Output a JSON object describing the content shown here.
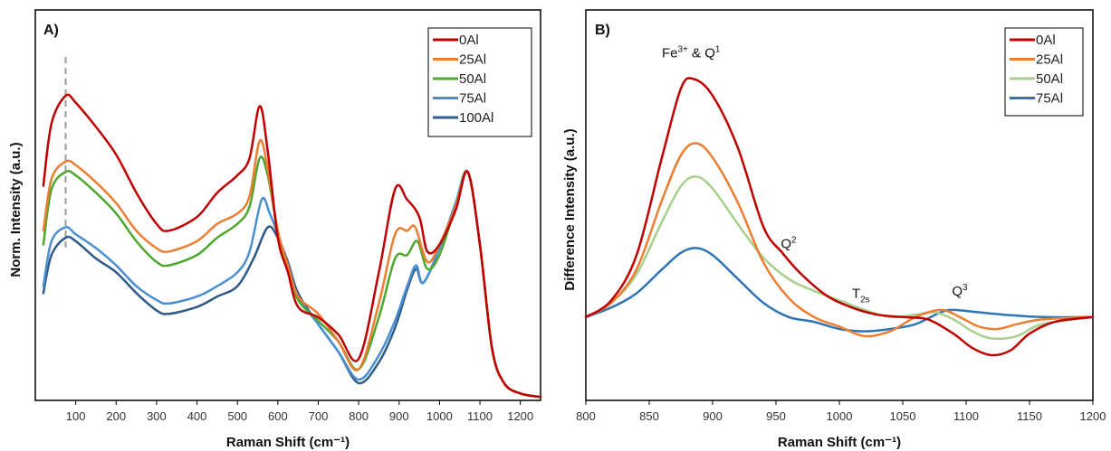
{
  "chart_data": [
    {
      "type": "line",
      "panel": "A)",
      "xlabel": "Raman Shift (cm⁻¹)",
      "ylabel": "Norm. Intensity (a.u.)",
      "xlim": [
        0,
        1250
      ],
      "xticks": [
        100,
        200,
        300,
        400,
        500,
        600,
        700,
        800,
        900,
        1000,
        1100,
        1200
      ],
      "ylim": [
        0,
        1.0
      ],
      "y_ticks_shown": false,
      "grid": false,
      "legend_position": "top-right",
      "reference_line": {
        "x": 75,
        "style": "dashed",
        "color": "#999999"
      },
      "series": [
        {
          "name": "0Al",
          "color": "#C00000",
          "points": [
            [
              20,
              0.62
            ],
            [
              40,
              0.8
            ],
            [
              75,
              0.88
            ],
            [
              100,
              0.86
            ],
            [
              150,
              0.79
            ],
            [
              200,
              0.71
            ],
            [
              250,
              0.6
            ],
            [
              300,
              0.51
            ],
            [
              330,
              0.49
            ],
            [
              400,
              0.53
            ],
            [
              450,
              0.6
            ],
            [
              500,
              0.65
            ],
            [
              530,
              0.7
            ],
            [
              555,
              0.85
            ],
            [
              575,
              0.72
            ],
            [
              600,
              0.47
            ],
            [
              625,
              0.37
            ],
            [
              650,
              0.27
            ],
            [
              700,
              0.24
            ],
            [
              750,
              0.19
            ],
            [
              800,
              0.12
            ],
            [
              850,
              0.37
            ],
            [
              890,
              0.61
            ],
            [
              920,
              0.58
            ],
            [
              950,
              0.53
            ],
            [
              970,
              0.43
            ],
            [
              1000,
              0.45
            ],
            [
              1040,
              0.55
            ],
            [
              1070,
              0.66
            ],
            [
              1100,
              0.45
            ],
            [
              1130,
              0.15
            ],
            [
              1160,
              0.05
            ],
            [
              1200,
              0.02
            ],
            [
              1250,
              0.01
            ]
          ]
        },
        {
          "name": "25Al",
          "color": "#ED7D31",
          "points": [
            [
              20,
              0.49
            ],
            [
              40,
              0.64
            ],
            [
              75,
              0.69
            ],
            [
              100,
              0.68
            ],
            [
              150,
              0.63
            ],
            [
              200,
              0.57
            ],
            [
              250,
              0.49
            ],
            [
              300,
              0.44
            ],
            [
              330,
              0.43
            ],
            [
              400,
              0.46
            ],
            [
              450,
              0.51
            ],
            [
              500,
              0.54
            ],
            [
              530,
              0.59
            ],
            [
              555,
              0.75
            ],
            [
              575,
              0.67
            ],
            [
              600,
              0.49
            ],
            [
              625,
              0.39
            ],
            [
              650,
              0.3
            ],
            [
              700,
              0.25
            ],
            [
              750,
              0.17
            ],
            [
              800,
              0.09
            ],
            [
              850,
              0.28
            ],
            [
              890,
              0.48
            ],
            [
              920,
              0.49
            ],
            [
              940,
              0.5
            ],
            [
              970,
              0.4
            ],
            [
              1000,
              0.45
            ],
            [
              1040,
              0.56
            ],
            [
              1070,
              0.66
            ],
            [
              1100,
              0.45
            ],
            [
              1130,
              0.15
            ],
            [
              1160,
              0.05
            ],
            [
              1200,
              0.02
            ],
            [
              1250,
              0.01
            ]
          ]
        },
        {
          "name": "50Al",
          "color": "#4EA72E",
          "points": [
            [
              20,
              0.45
            ],
            [
              40,
              0.61
            ],
            [
              75,
              0.66
            ],
            [
              100,
              0.65
            ],
            [
              150,
              0.6
            ],
            [
              200,
              0.54
            ],
            [
              250,
              0.46
            ],
            [
              300,
              0.4
            ],
            [
              330,
              0.39
            ],
            [
              400,
              0.42
            ],
            [
              450,
              0.47
            ],
            [
              500,
              0.51
            ],
            [
              530,
              0.56
            ],
            [
              555,
              0.7
            ],
            [
              575,
              0.65
            ],
            [
              600,
              0.49
            ],
            [
              625,
              0.38
            ],
            [
              650,
              0.29
            ],
            [
              700,
              0.23
            ],
            [
              750,
              0.17
            ],
            [
              800,
              0.09
            ],
            [
              850,
              0.24
            ],
            [
              890,
              0.41
            ],
            [
              920,
              0.42
            ],
            [
              945,
              0.46
            ],
            [
              970,
              0.38
            ],
            [
              1000,
              0.42
            ],
            [
              1040,
              0.56
            ],
            [
              1070,
              0.66
            ],
            [
              1100,
              0.45
            ],
            [
              1130,
              0.15
            ],
            [
              1160,
              0.05
            ],
            [
              1200,
              0.02
            ],
            [
              1250,
              0.01
            ]
          ]
        },
        {
          "name": "75Al",
          "color": "#4A90D0",
          "points": [
            [
              20,
              0.33
            ],
            [
              40,
              0.46
            ],
            [
              75,
              0.5
            ],
            [
              100,
              0.48
            ],
            [
              150,
              0.44
            ],
            [
              200,
              0.39
            ],
            [
              250,
              0.33
            ],
            [
              300,
              0.29
            ],
            [
              330,
              0.28
            ],
            [
              400,
              0.3
            ],
            [
              450,
              0.33
            ],
            [
              500,
              0.37
            ],
            [
              530,
              0.43
            ],
            [
              560,
              0.58
            ],
            [
              580,
              0.54
            ],
            [
              600,
              0.48
            ],
            [
              625,
              0.39
            ],
            [
              650,
              0.3
            ],
            [
              700,
              0.22
            ],
            [
              750,
              0.14
            ],
            [
              800,
              0.06
            ],
            [
              850,
              0.13
            ],
            [
              890,
              0.23
            ],
            [
              920,
              0.33
            ],
            [
              942,
              0.39
            ],
            [
              960,
              0.34
            ],
            [
              1000,
              0.44
            ],
            [
              1040,
              0.57
            ],
            [
              1070,
              0.66
            ],
            [
              1100,
              0.45
            ],
            [
              1130,
              0.15
            ],
            [
              1160,
              0.05
            ],
            [
              1200,
              0.02
            ],
            [
              1250,
              0.01
            ]
          ]
        },
        {
          "name": "100Al",
          "color": "#2F5B8A",
          "points": [
            [
              20,
              0.31
            ],
            [
              40,
              0.42
            ],
            [
              75,
              0.47
            ],
            [
              100,
              0.46
            ],
            [
              150,
              0.41
            ],
            [
              200,
              0.37
            ],
            [
              250,
              0.31
            ],
            [
              300,
              0.26
            ],
            [
              330,
              0.25
            ],
            [
              400,
              0.27
            ],
            [
              450,
              0.3
            ],
            [
              500,
              0.33
            ],
            [
              540,
              0.41
            ],
            [
              575,
              0.5
            ],
            [
              600,
              0.47
            ],
            [
              625,
              0.4
            ],
            [
              650,
              0.31
            ],
            [
              700,
              0.22
            ],
            [
              750,
              0.14
            ],
            [
              800,
              0.05
            ],
            [
              850,
              0.11
            ],
            [
              890,
              0.21
            ],
            [
              920,
              0.32
            ],
            [
              942,
              0.38
            ],
            [
              960,
              0.34
            ],
            [
              1000,
              0.44
            ],
            [
              1040,
              0.57
            ],
            [
              1070,
              0.66
            ],
            [
              1100,
              0.45
            ],
            [
              1130,
              0.15
            ],
            [
              1160,
              0.05
            ],
            [
              1200,
              0.02
            ],
            [
              1250,
              0.01
            ]
          ]
        }
      ]
    },
    {
      "type": "line",
      "panel": "B)",
      "xlabel": "Raman Shift (cm⁻¹)",
      "ylabel": "Difference Intensity (a.u.)",
      "xlim": [
        800,
        1200
      ],
      "xticks": [
        800,
        850,
        900,
        950,
        1000,
        1050,
        1100,
        1150,
        1200
      ],
      "ylim": [
        -0.35,
        1.18
      ],
      "y_ticks_shown": false,
      "grid": false,
      "legend_position": "top-right",
      "annotations": [
        {
          "text": "Fe",
          "sup": "3+",
          "after": " & Q",
          "sup2": "1",
          "x": 883,
          "y": 1.09
        },
        {
          "text": "Q",
          "sup": "2",
          "x": 960,
          "y": 0.29
        },
        {
          "text": "T",
          "sub": "2s",
          "x": 1017,
          "y": 0.08
        },
        {
          "text": "Q",
          "sup": "3",
          "x": 1095,
          "y": 0.09
        }
      ],
      "series": [
        {
          "name": "0Al",
          "color": "#C00000",
          "points": [
            [
              800,
              0.0
            ],
            [
              820,
              0.07
            ],
            [
              840,
              0.26
            ],
            [
              860,
              0.67
            ],
            [
              875,
              0.96
            ],
            [
              885,
              1.0
            ],
            [
              900,
              0.93
            ],
            [
              920,
              0.71
            ],
            [
              940,
              0.38
            ],
            [
              955,
              0.27
            ],
            [
              970,
              0.18
            ],
            [
              990,
              0.09
            ],
            [
              1010,
              0.04
            ],
            [
              1030,
              0.01
            ],
            [
              1050,
              0.0
            ],
            [
              1070,
              -0.01
            ],
            [
              1090,
              -0.07
            ],
            [
              1105,
              -0.13
            ],
            [
              1120,
              -0.16
            ],
            [
              1135,
              -0.14
            ],
            [
              1150,
              -0.07
            ],
            [
              1170,
              -0.02
            ],
            [
              1200,
              0.0
            ]
          ]
        },
        {
          "name": "25Al",
          "color": "#ED7D31",
          "points": [
            [
              800,
              0.0
            ],
            [
              820,
              0.06
            ],
            [
              840,
              0.2
            ],
            [
              860,
              0.49
            ],
            [
              875,
              0.68
            ],
            [
              887,
              0.73
            ],
            [
              900,
              0.67
            ],
            [
              920,
              0.48
            ],
            [
              940,
              0.23
            ],
            [
              960,
              0.08
            ],
            [
              980,
              0.0
            ],
            [
              1000,
              -0.04
            ],
            [
              1020,
              -0.08
            ],
            [
              1040,
              -0.06
            ],
            [
              1060,
              0.0
            ],
            [
              1080,
              0.03
            ],
            [
              1095,
              0.0
            ],
            [
              1110,
              -0.04
            ],
            [
              1125,
              -0.05
            ],
            [
              1140,
              -0.03
            ],
            [
              1160,
              -0.01
            ],
            [
              1200,
              0.0
            ]
          ]
        },
        {
          "name": "50Al",
          "color": "#A8D08D",
          "points": [
            [
              800,
              0.0
            ],
            [
              820,
              0.06
            ],
            [
              840,
              0.18
            ],
            [
              860,
              0.4
            ],
            [
              875,
              0.55
            ],
            [
              887,
              0.59
            ],
            [
              900,
              0.54
            ],
            [
              920,
              0.39
            ],
            [
              940,
              0.25
            ],
            [
              960,
              0.16
            ],
            [
              980,
              0.11
            ],
            [
              1000,
              0.07
            ],
            [
              1020,
              0.03
            ],
            [
              1040,
              0.0
            ],
            [
              1060,
              0.01
            ],
            [
              1075,
              0.02
            ],
            [
              1090,
              -0.01
            ],
            [
              1105,
              -0.06
            ],
            [
              1120,
              -0.09
            ],
            [
              1140,
              -0.08
            ],
            [
              1160,
              -0.03
            ],
            [
              1200,
              0.0
            ]
          ]
        },
        {
          "name": "75Al",
          "color": "#2E75B6",
          "points": [
            [
              800,
              0.0
            ],
            [
              820,
              0.04
            ],
            [
              840,
              0.1
            ],
            [
              860,
              0.2
            ],
            [
              875,
              0.27
            ],
            [
              887,
              0.29
            ],
            [
              900,
              0.26
            ],
            [
              920,
              0.16
            ],
            [
              940,
              0.06
            ],
            [
              960,
              0.0
            ],
            [
              980,
              -0.02
            ],
            [
              1000,
              -0.05
            ],
            [
              1020,
              -0.06
            ],
            [
              1040,
              -0.05
            ],
            [
              1060,
              -0.03
            ],
            [
              1080,
              0.02
            ],
            [
              1090,
              0.03
            ],
            [
              1110,
              0.02
            ],
            [
              1130,
              0.01
            ],
            [
              1160,
              0.0
            ],
            [
              1200,
              0.0
            ]
          ]
        }
      ]
    }
  ]
}
